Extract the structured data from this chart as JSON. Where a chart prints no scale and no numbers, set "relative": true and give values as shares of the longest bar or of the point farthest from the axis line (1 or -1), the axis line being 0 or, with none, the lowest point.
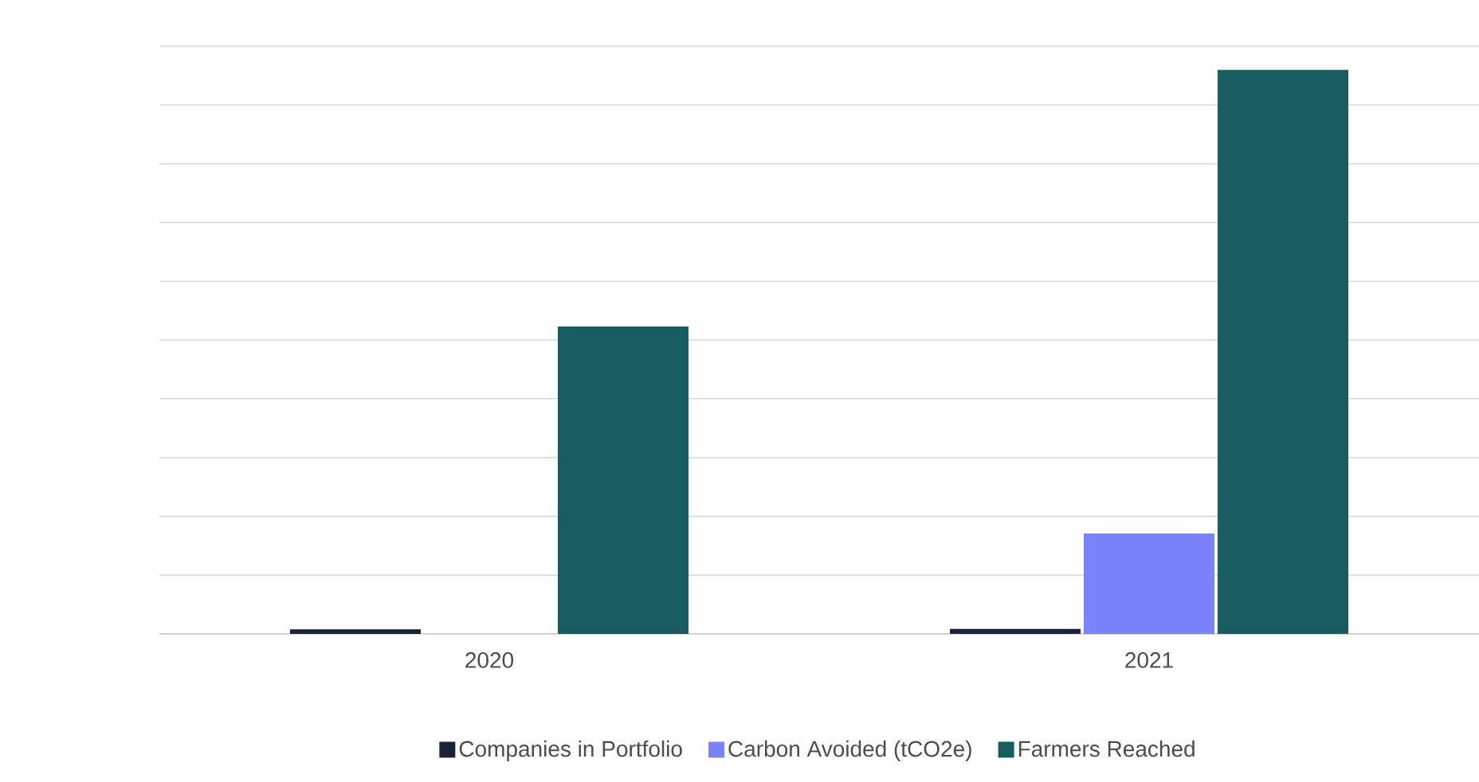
{
  "chart_data": {
    "type": "bar",
    "relative": true,
    "categories": [
      "2020",
      "2021"
    ],
    "series": [
      {
        "name": "Companies in Portfolio",
        "color": "#1a2238",
        "values": [
          0.008,
          0.009
        ]
      },
      {
        "name": "Carbon Avoided (tCO2e)",
        "color": "#7b83fb",
        "values": [
          0,
          0.178
        ]
      },
      {
        "name": "Farmers Reached",
        "color": "#175c60",
        "values": [
          0.545,
          1
        ]
      }
    ],
    "grid": "y",
    "legend": "bottom"
  }
}
